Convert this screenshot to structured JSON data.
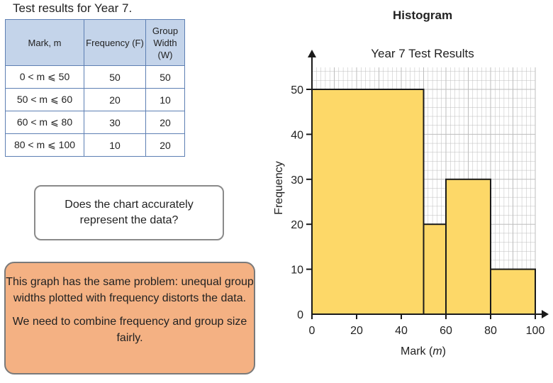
{
  "page_title": "Test results for Year 7.",
  "table": {
    "headers": {
      "mark": "Mark, m",
      "frequency": "Frequency (F)",
      "width": "Group Width (W)"
    },
    "rows": [
      {
        "range": "0 < m ⩽ 50",
        "frequency": "50",
        "width": "50"
      },
      {
        "range": "50 < m ⩽ 60",
        "frequency": "20",
        "width": "10"
      },
      {
        "range": "60 < m ⩽ 80",
        "frequency": "30",
        "width": "20"
      },
      {
        "range": "80 < m ⩽ 100",
        "frequency": "10",
        "width": "20"
      }
    ]
  },
  "question_text": "Does the chart accurately represent the data?",
  "note": {
    "line1": "This graph has the same problem: unequal group widths plotted with frequency distorts the data.",
    "line2": "We need to combine frequency and group size fairly."
  },
  "colors": {
    "bar_fill": "#fdd868",
    "bar_stroke": "#1a1a1a",
    "note_fill": "#f4b183",
    "table_header": "#c4d4ea",
    "grid": "#bdbdbd"
  },
  "chart_data": {
    "type": "bar",
    "header": "Histogram",
    "title": "Year 7 Test Results",
    "xlabel": "Mark (m)",
    "ylabel": "Frequency",
    "xlim": [
      0,
      100
    ],
    "ylim": [
      0,
      50
    ],
    "xticks": [
      0,
      20,
      40,
      60,
      80,
      100
    ],
    "yticks": [
      0,
      10,
      20,
      30,
      40,
      50
    ],
    "bins": [
      {
        "x0": 0,
        "x1": 50,
        "value": 50
      },
      {
        "x0": 50,
        "x1": 60,
        "value": 20
      },
      {
        "x0": 60,
        "x1": 80,
        "value": 30
      },
      {
        "x0": 80,
        "x1": 100,
        "value": 10
      }
    ],
    "grid": true
  }
}
